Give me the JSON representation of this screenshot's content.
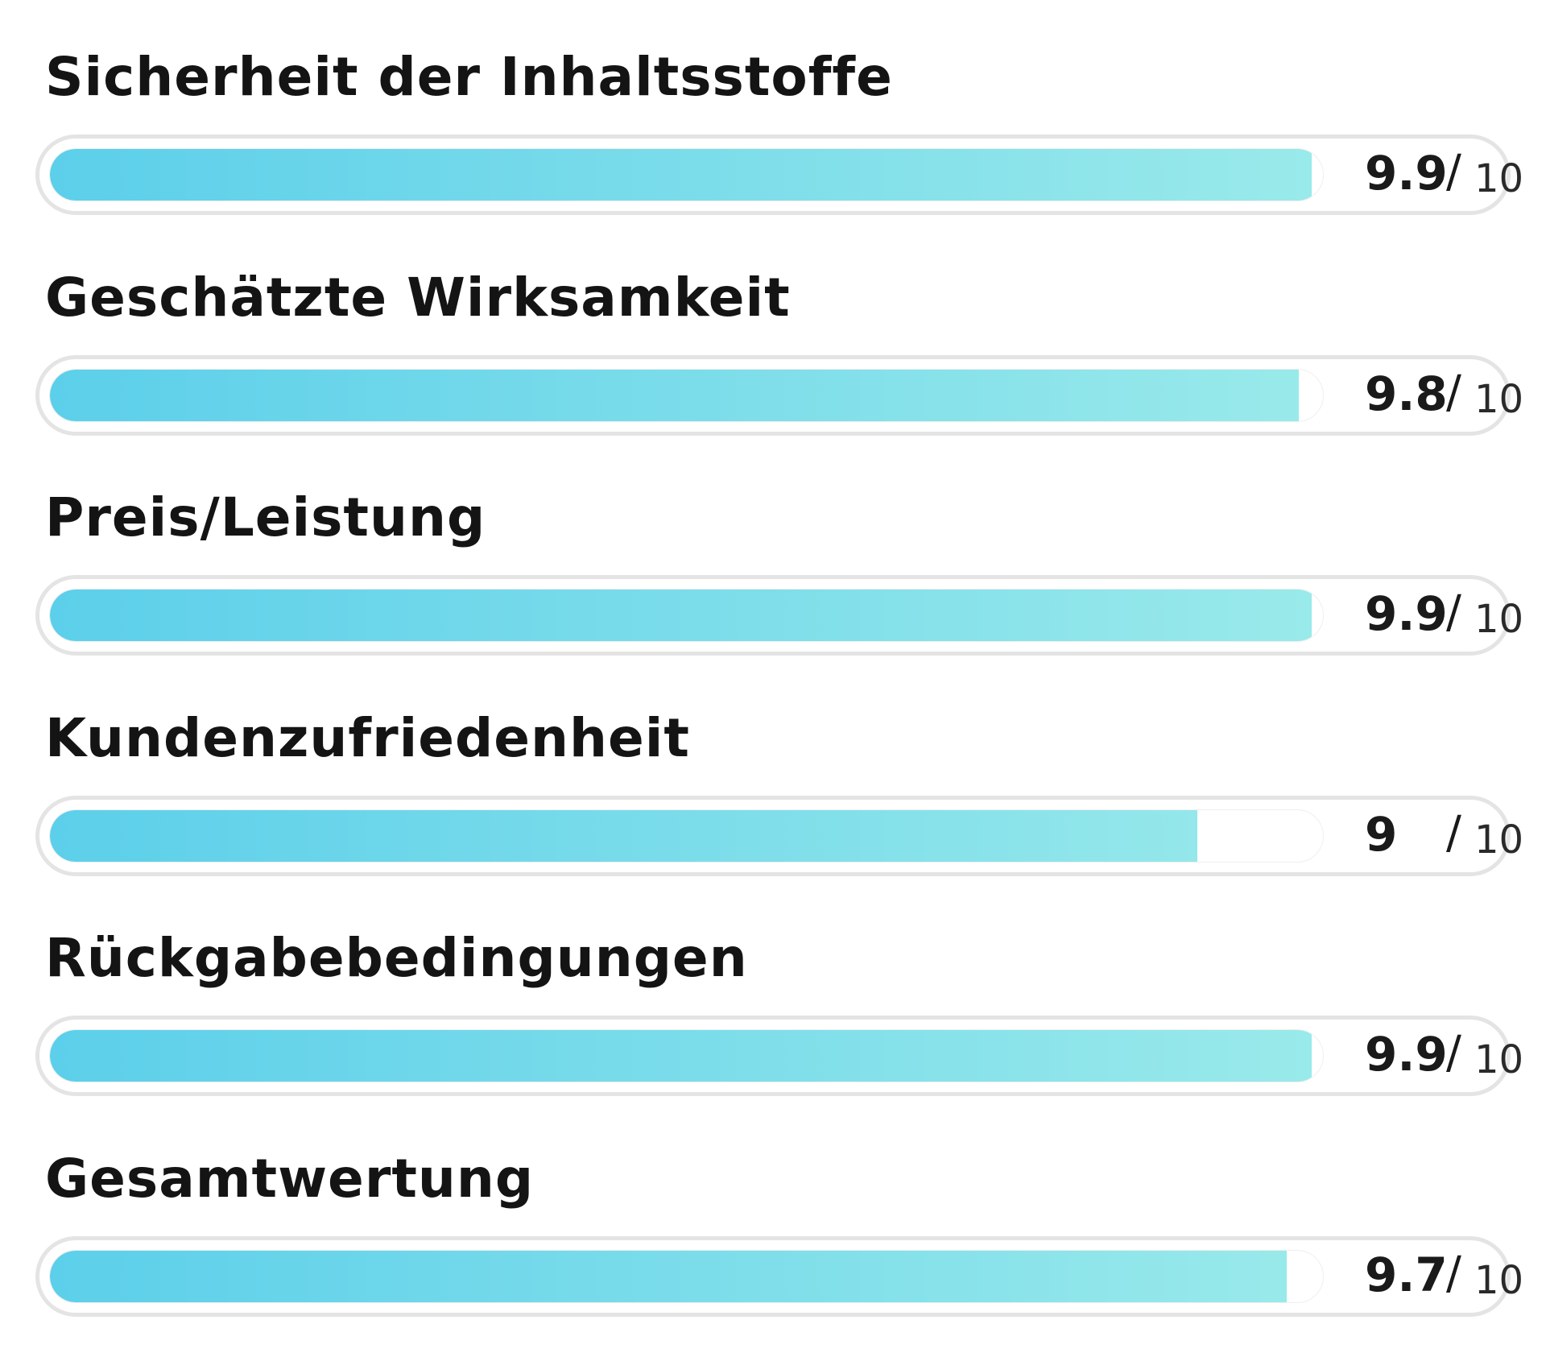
{
  "chart_data": {
    "type": "bar",
    "orientation": "horizontal",
    "categories": [
      "Sicherheit der Inhaltsstoffe",
      "Geschätzte Wirksamkeit",
      "Preis/Leistung",
      "Kundenzufriedenheit",
      "Rückgabebedingungen",
      "Gesamtwertung"
    ],
    "values": [
      9.9,
      9.8,
      9.9,
      9,
      9.9,
      9.7
    ],
    "value_labels": [
      "9.9",
      "9.8",
      "9.9",
      "9",
      "9.9",
      "9.7"
    ],
    "max": 10,
    "max_label": "10",
    "separator": "/",
    "xlim": [
      0,
      10
    ],
    "grid": false,
    "legend": "none"
  },
  "colors": {
    "fill_start": "#5ccfea",
    "fill_end": "#9aeaea",
    "track_border": "#e4e4e4",
    "text": "#141414"
  }
}
